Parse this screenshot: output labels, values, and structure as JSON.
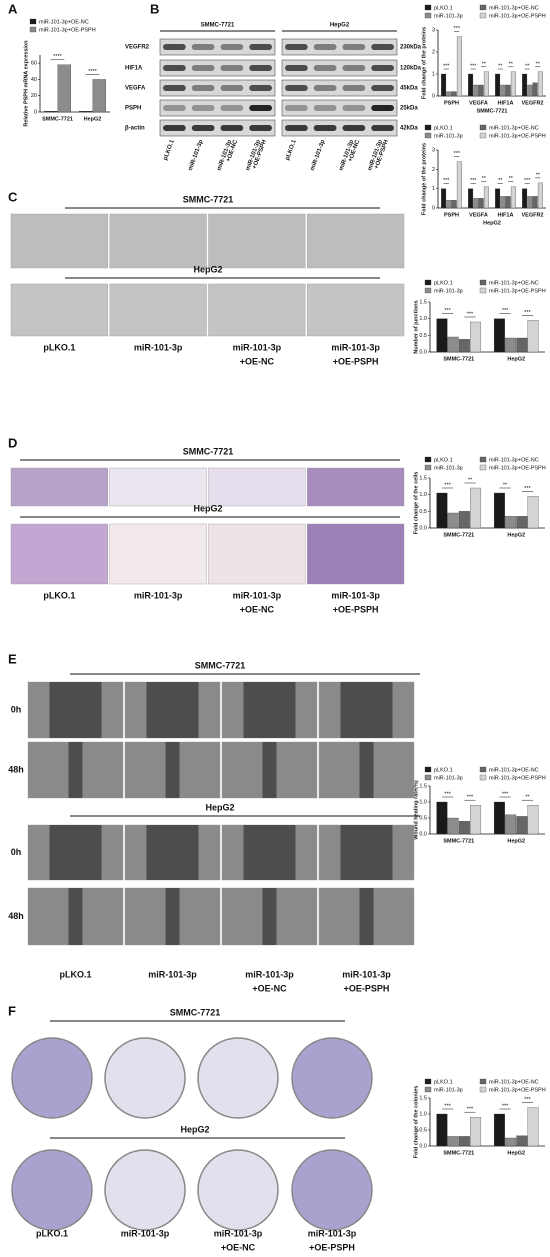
{
  "panel_labels": [
    "A",
    "B",
    "C",
    "D",
    "E",
    "F"
  ],
  "blot": {
    "groups": [
      "SMMC-7721",
      "HepG2"
    ],
    "proteins": [
      "VEGFR2",
      "HIF1A",
      "VEGFA",
      "PSPH",
      "β-actin"
    ],
    "sizes": [
      "230kDa",
      "120kDa",
      "45kDa",
      "25kDa",
      "42kDa"
    ],
    "lanes": [
      [
        "pLKO.1"
      ],
      [
        "miR-101-3p"
      ],
      [
        "miR-101-3p",
        "+OE-NC"
      ],
      [
        "miR-101-3p",
        "+OE-PSPH"
      ]
    ]
  },
  "image_panels": [
    {
      "groups": [
        "SMMC-7721",
        "HepG2"
      ],
      "conditions": [
        [
          "pLKO.1"
        ],
        [
          "miR-101-3p"
        ],
        [
          "miR-101-3p",
          "+OE-NC"
        ],
        [
          "miR-101-3p",
          "+OE-PSPH"
        ]
      ]
    },
    {
      "groups": [
        "SMMC-7721",
        "HepG2"
      ],
      "conditions": [
        [
          "pLKO.1"
        ],
        [
          "miR-101-3p"
        ],
        [
          "miR-101-3p",
          "+OE-NC"
        ],
        [
          "miR-101-3p",
          "+OE-PSPH"
        ]
      ]
    },
    {
      "groups": [
        "SMMC-7721",
        "HepG2"
      ],
      "timepoints": [
        "0h",
        "48h"
      ],
      "conditions": [
        [
          "pLKO.1"
        ],
        [
          "miR-101-3p"
        ],
        [
          "miR-101-3p",
          "+OE-NC"
        ],
        [
          "miR-101-3p",
          "+OE-PSPH"
        ]
      ]
    },
    {
      "groups": [
        "SMMC-7721",
        "HepG2"
      ],
      "conditions": [
        [
          "pLKO.1"
        ],
        [
          "miR-101-3p"
        ],
        [
          "miR-101-3p",
          "+OE-NC"
        ],
        [
          "miR-101-3p",
          "+OE-PSPH"
        ]
      ]
    }
  ],
  "chart_data": [
    {
      "type": "bar",
      "ylabel": "Relative PSPH mRNA expression",
      "categories": [
        "SMMC-7721",
        "HepG2"
      ],
      "series": [
        {
          "name": "miR-101-3p+OE-NC",
          "color": "#1a1a1a",
          "values": [
            1,
            1
          ]
        },
        {
          "name": "miR-101-3p+OE-PSPH",
          "color": "#8c8c8c",
          "values": [
            58,
            40
          ]
        }
      ],
      "ylim": [
        0,
        70
      ],
      "yticks": [
        0,
        20,
        40,
        60
      ],
      "significance": [
        [
          "****"
        ],
        [
          "****"
        ]
      ]
    },
    {
      "type": "bar",
      "ylabel": "Fold change of the proteins",
      "xlabel": "SMMC-7721",
      "categories": [
        "PSPH",
        "VEGFA",
        "HIF1A",
        "VEGFR2"
      ],
      "series": [
        {
          "name": "pLKO.1",
          "color": "#1a1a1a",
          "values": [
            1,
            1,
            1,
            1
          ]
        },
        {
          "name": "miR-101-3p",
          "color": "#8c8c8c",
          "values": [
            0.2,
            0.5,
            0.5,
            0.5
          ]
        },
        {
          "name": "miR-101-3p+OE-NC",
          "color": "#666666",
          "values": [
            0.2,
            0.5,
            0.5,
            0.6
          ]
        },
        {
          "name": "miR-101-3p+OE-PSPH",
          "color": "#d4d4d4",
          "values": [
            2.7,
            1.1,
            1.1,
            1.1
          ]
        }
      ],
      "ylim": [
        0,
        3
      ],
      "yticks": [
        0,
        1,
        2,
        3
      ],
      "significance": [
        [
          "***",
          "***"
        ],
        [
          "***",
          "**"
        ],
        [
          "**",
          "**"
        ],
        [
          "**",
          "**"
        ]
      ]
    },
    {
      "type": "bar",
      "ylabel": "Fold change of the proteins",
      "xlabel": "HepG2",
      "categories": [
        "PSPH",
        "VEGFA",
        "HIF1A",
        "VEGFR2"
      ],
      "series": [
        {
          "name": "pLKO.1",
          "color": "#1a1a1a",
          "values": [
            1,
            1,
            1,
            1
          ]
        },
        {
          "name": "miR-101-3p",
          "color": "#8c8c8c",
          "values": [
            0.4,
            0.5,
            0.6,
            0.6
          ]
        },
        {
          "name": "miR-101-3p+OE-NC",
          "color": "#666666",
          "values": [
            0.4,
            0.5,
            0.6,
            0.6
          ]
        },
        {
          "name": "miR-101-3p+OE-PSPH",
          "color": "#d4d4d4",
          "values": [
            2.4,
            1.1,
            1.1,
            1.3
          ]
        }
      ],
      "ylim": [
        0,
        3
      ],
      "yticks": [
        0,
        1,
        2,
        3
      ],
      "significance": [
        [
          "***",
          "***"
        ],
        [
          "***",
          "**"
        ],
        [
          "**",
          "**"
        ],
        [
          "***",
          "**"
        ]
      ]
    },
    {
      "type": "bar",
      "ylabel": "Number of junctions",
      "categories": [
        "SMMC-7721",
        "HepG2"
      ],
      "series": [
        {
          "name": "pLKO.1",
          "color": "#1a1a1a",
          "values": [
            1,
            1
          ]
        },
        {
          "name": "miR-101-3p",
          "color": "#8c8c8c",
          "values": [
            0.45,
            0.42
          ]
        },
        {
          "name": "miR-101-3p+OE-NC",
          "color": "#666666",
          "values": [
            0.38,
            0.42
          ]
        },
        {
          "name": "miR-101-3p+OE-PSPH",
          "color": "#d4d4d4",
          "values": [
            0.9,
            0.95
          ]
        }
      ],
      "ylim": [
        0,
        1.5
      ],
      "yticks": [
        {
          "value": 0,
          "label": "0.0"
        },
        0.5,
        {
          "value": 1,
          "label": "1.0"
        },
        1.5
      ],
      "significance": [
        [
          "***",
          "***"
        ],
        [
          "***",
          "***"
        ]
      ]
    },
    {
      "type": "bar",
      "ylabel": "Fold change of the cells",
      "categories": [
        "SMMC-7721",
        "HepG2"
      ],
      "series": [
        {
          "name": "pLKO.1",
          "color": "#1a1a1a",
          "values": [
            1.05,
            1.05
          ]
        },
        {
          "name": "miR-101-3p",
          "color": "#8c8c8c",
          "values": [
            0.45,
            0.35
          ]
        },
        {
          "name": "miR-101-3p+OE-NC",
          "color": "#666666",
          "values": [
            0.5,
            0.35
          ]
        },
        {
          "name": "miR-101-3p+OE-PSPH",
          "color": "#d4d4d4",
          "values": [
            1.2,
            0.95
          ]
        }
      ],
      "ylim": [
        0,
        1.5
      ],
      "yticks": [
        {
          "value": 0,
          "label": "0.0"
        },
        0.5,
        {
          "value": 1,
          "label": "1.0"
        },
        1.5
      ],
      "significance": [
        [
          "***",
          "**"
        ],
        [
          "**",
          "***"
        ]
      ]
    },
    {
      "type": "bar",
      "ylabel": "Wound healing rate(%)",
      "categories": [
        "SMMC-7721",
        "HepG2"
      ],
      "series": [
        {
          "name": "pLKO.1",
          "color": "#1a1a1a",
          "values": [
            1,
            1
          ]
        },
        {
          "name": "miR-101-3p",
          "color": "#8c8c8c",
          "values": [
            0.5,
            0.6
          ]
        },
        {
          "name": "miR-101-3p+OE-NC",
          "color": "#666666",
          "values": [
            0.4,
            0.55
          ]
        },
        {
          "name": "miR-101-3p+OE-PSPH",
          "color": "#d4d4d4",
          "values": [
            0.9,
            0.9
          ]
        }
      ],
      "ylim": [
        0,
        1.5
      ],
      "yticks": [
        {
          "value": 0,
          "label": "0.0"
        },
        0.5,
        {
          "value": 1,
          "label": "1.0"
        },
        1.5
      ],
      "significance": [
        [
          "***",
          "***"
        ],
        [
          "***",
          "**"
        ]
      ]
    },
    {
      "type": "bar",
      "ylabel": "Fold change of the colonies",
      "categories": [
        "SMMC-7721",
        "HepG2"
      ],
      "series": [
        {
          "name": "pLKO.1",
          "color": "#1a1a1a",
          "values": [
            1,
            1
          ]
        },
        {
          "name": "miR-101-3p",
          "color": "#8c8c8c",
          "values": [
            0.3,
            0.25
          ]
        },
        {
          "name": "miR-101-3p+OE-NC",
          "color": "#666666",
          "values": [
            0.3,
            0.32
          ]
        },
        {
          "name": "miR-101-3p+OE-PSPH",
          "color": "#d4d4d4",
          "values": [
            0.9,
            1.2
          ]
        }
      ],
      "ylim": [
        0,
        1.5
      ],
      "yticks": [
        {
          "value": 0,
          "label": "0.0"
        },
        0.5,
        {
          "value": 1,
          "label": "1.0"
        },
        1.5
      ],
      "significance": [
        [
          "***",
          "***"
        ],
        [
          "***",
          "***"
        ]
      ]
    }
  ]
}
